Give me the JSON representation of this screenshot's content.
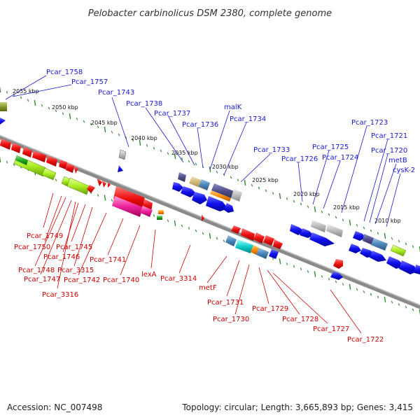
{
  "title": "Pelobacter carbinolicus DSM 2380, complete genome",
  "footer": {
    "accession": "Accession: NC_007498",
    "topology": "Topology: circular; Length: 3,665,893 bp; Genes: 3,415"
  },
  "colors": {
    "backbone": "#8a8a8a",
    "tick": "#2e8b2e",
    "top_label": "#1a1ad0",
    "bottom_label": "#cc0000",
    "forward_gene": "#ee1111",
    "reverse_gene": "#1111ee"
  },
  "scale": {
    "ticks": [
      "2055 kbp",
      "2050 kbp",
      "2045 kbp",
      "2040 kbp",
      "2035 kbp",
      "2030 kbp",
      "2025 kbp",
      "2020 kbp",
      "2015 kbp",
      "2010 kbp"
    ]
  },
  "top_labels": [
    "Pcar_1758",
    "Pcar_1757",
    "Pcar_1743",
    "Pcar_1738",
    "Pcar_1737",
    "Pcar_1736",
    "malK",
    "Pcar_1734",
    "Pcar_1733",
    "Pcar_1726",
    "Pcar_1725",
    "Pcar_1724",
    "Pcar_1723",
    "Pcar_1721",
    "Pcar_1720",
    "metB",
    "cysK-2"
  ],
  "bottom_labels": [
    "Pcar_1749",
    "Pcar_1750",
    "Pcar_1745",
    "Pcar_1746",
    "Pcar_1748",
    "Pcar_3315",
    "Pcar_1747",
    "Pcar_1742",
    "Pcar_3316",
    "Pcar_1741",
    "Pcar_1740",
    "lexA",
    "Pcar_3314",
    "metF",
    "Pcar_1731",
    "Pcar_1730",
    "Pcar_1729",
    "Pcar_1728",
    "Pcar_1727",
    "Pcar_1722"
  ]
}
